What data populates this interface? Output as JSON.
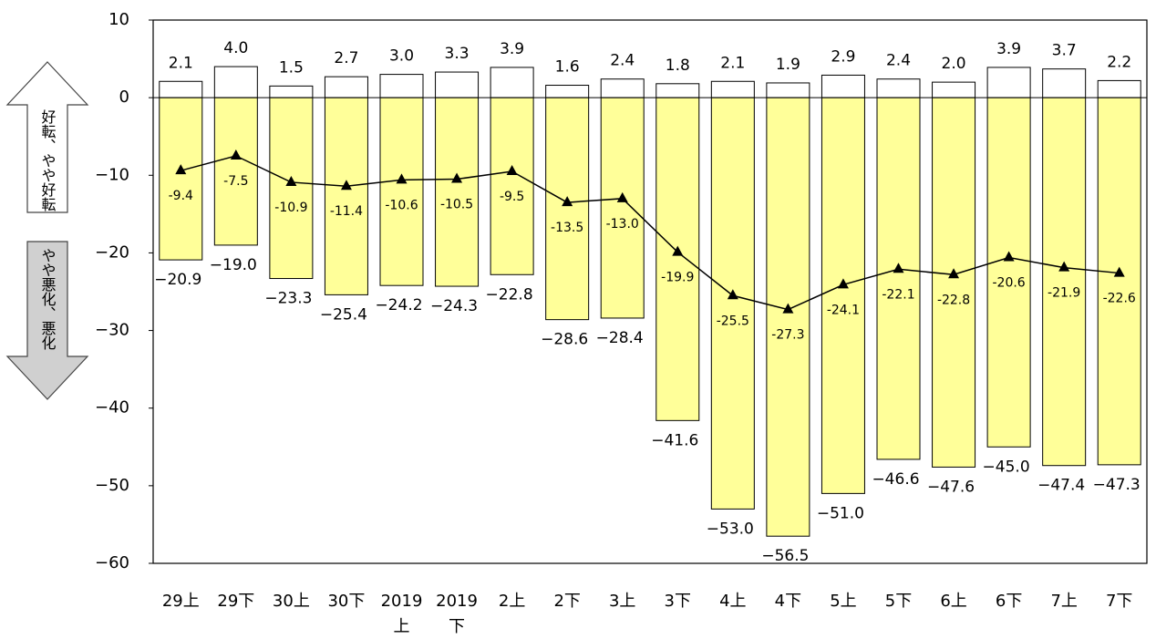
{
  "chart_data": {
    "type": "bar",
    "categories": [
      "29上",
      "29下",
      "30上",
      "30下",
      "2019\n上",
      "2019\n下",
      "2上",
      "2下",
      "3上",
      "3下",
      "4上",
      "4下",
      "5上",
      "5下",
      "6上",
      "6下",
      "7上",
      "7下"
    ],
    "series": [
      {
        "type": "bar",
        "color": "#ffffff",
        "values": [
          2.1,
          4.0,
          1.5,
          2.7,
          3.0,
          3.3,
          3.9,
          1.6,
          2.4,
          1.8,
          2.1,
          1.9,
          2.9,
          2.4,
          2.0,
          3.9,
          3.7,
          2.2
        ],
        "value_labels": [
          "2.1",
          "4.0",
          "1.5",
          "2.7",
          "3.0",
          "3.3",
          "3.9",
          "1.6",
          "2.4",
          "1.8",
          "2.1",
          "1.9",
          "2.9",
          "2.4",
          "2.0",
          "3.9",
          "3.7",
          "2.2"
        ]
      },
      {
        "type": "bar",
        "color": "#ffff99",
        "values": [
          -20.9,
          -19.0,
          -23.3,
          -25.4,
          -24.2,
          -24.3,
          -22.8,
          -28.6,
          -28.4,
          -41.6,
          -53.0,
          -56.5,
          -51.0,
          -46.6,
          -47.6,
          -45.0,
          -47.4,
          -47.3
        ],
        "value_labels": [
          "−20.9",
          "−19.0",
          "−23.3",
          "−25.4",
          "−24.2",
          "−24.3",
          "−22.8",
          "−28.6",
          "−28.4",
          "−41.6",
          "−53.0",
          "−56.5",
          "−51.0",
          "−46.6",
          "−47.6",
          "−45.0",
          "−47.4",
          "−47.3"
        ]
      },
      {
        "type": "line",
        "color": "#000000",
        "values": [
          -9.4,
          -7.5,
          -10.9,
          -11.4,
          -10.6,
          -10.5,
          -9.5,
          -13.5,
          -13.0,
          -19.9,
          -25.5,
          -27.3,
          -24.1,
          -22.1,
          -22.8,
          -20.6,
          -21.9,
          -22.6
        ],
        "value_labels": [
          "-9.4",
          "-7.5",
          "-10.9",
          "-11.4",
          "-10.6",
          "-10.5",
          "-9.5",
          "-13.5",
          "-13.0",
          "-19.9",
          "-25.5",
          "-27.3",
          "-24.1",
          "-22.1",
          "-22.8",
          "-20.6",
          "-21.9",
          "-22.6"
        ]
      }
    ],
    "ylim": [
      -60,
      10
    ],
    "yticks": [
      {
        "value": -60,
        "label": "−60"
      },
      {
        "value": -50,
        "label": "−50"
      },
      {
        "value": -40,
        "label": "−40"
      },
      {
        "value": -30,
        "label": "−30"
      },
      {
        "value": -20,
        "label": "−20"
      },
      {
        "value": -10,
        "label": "−10"
      },
      0,
      10
    ],
    "annotations": [
      "好転、やや好転",
      "やや悪化、悪化"
    ]
  }
}
